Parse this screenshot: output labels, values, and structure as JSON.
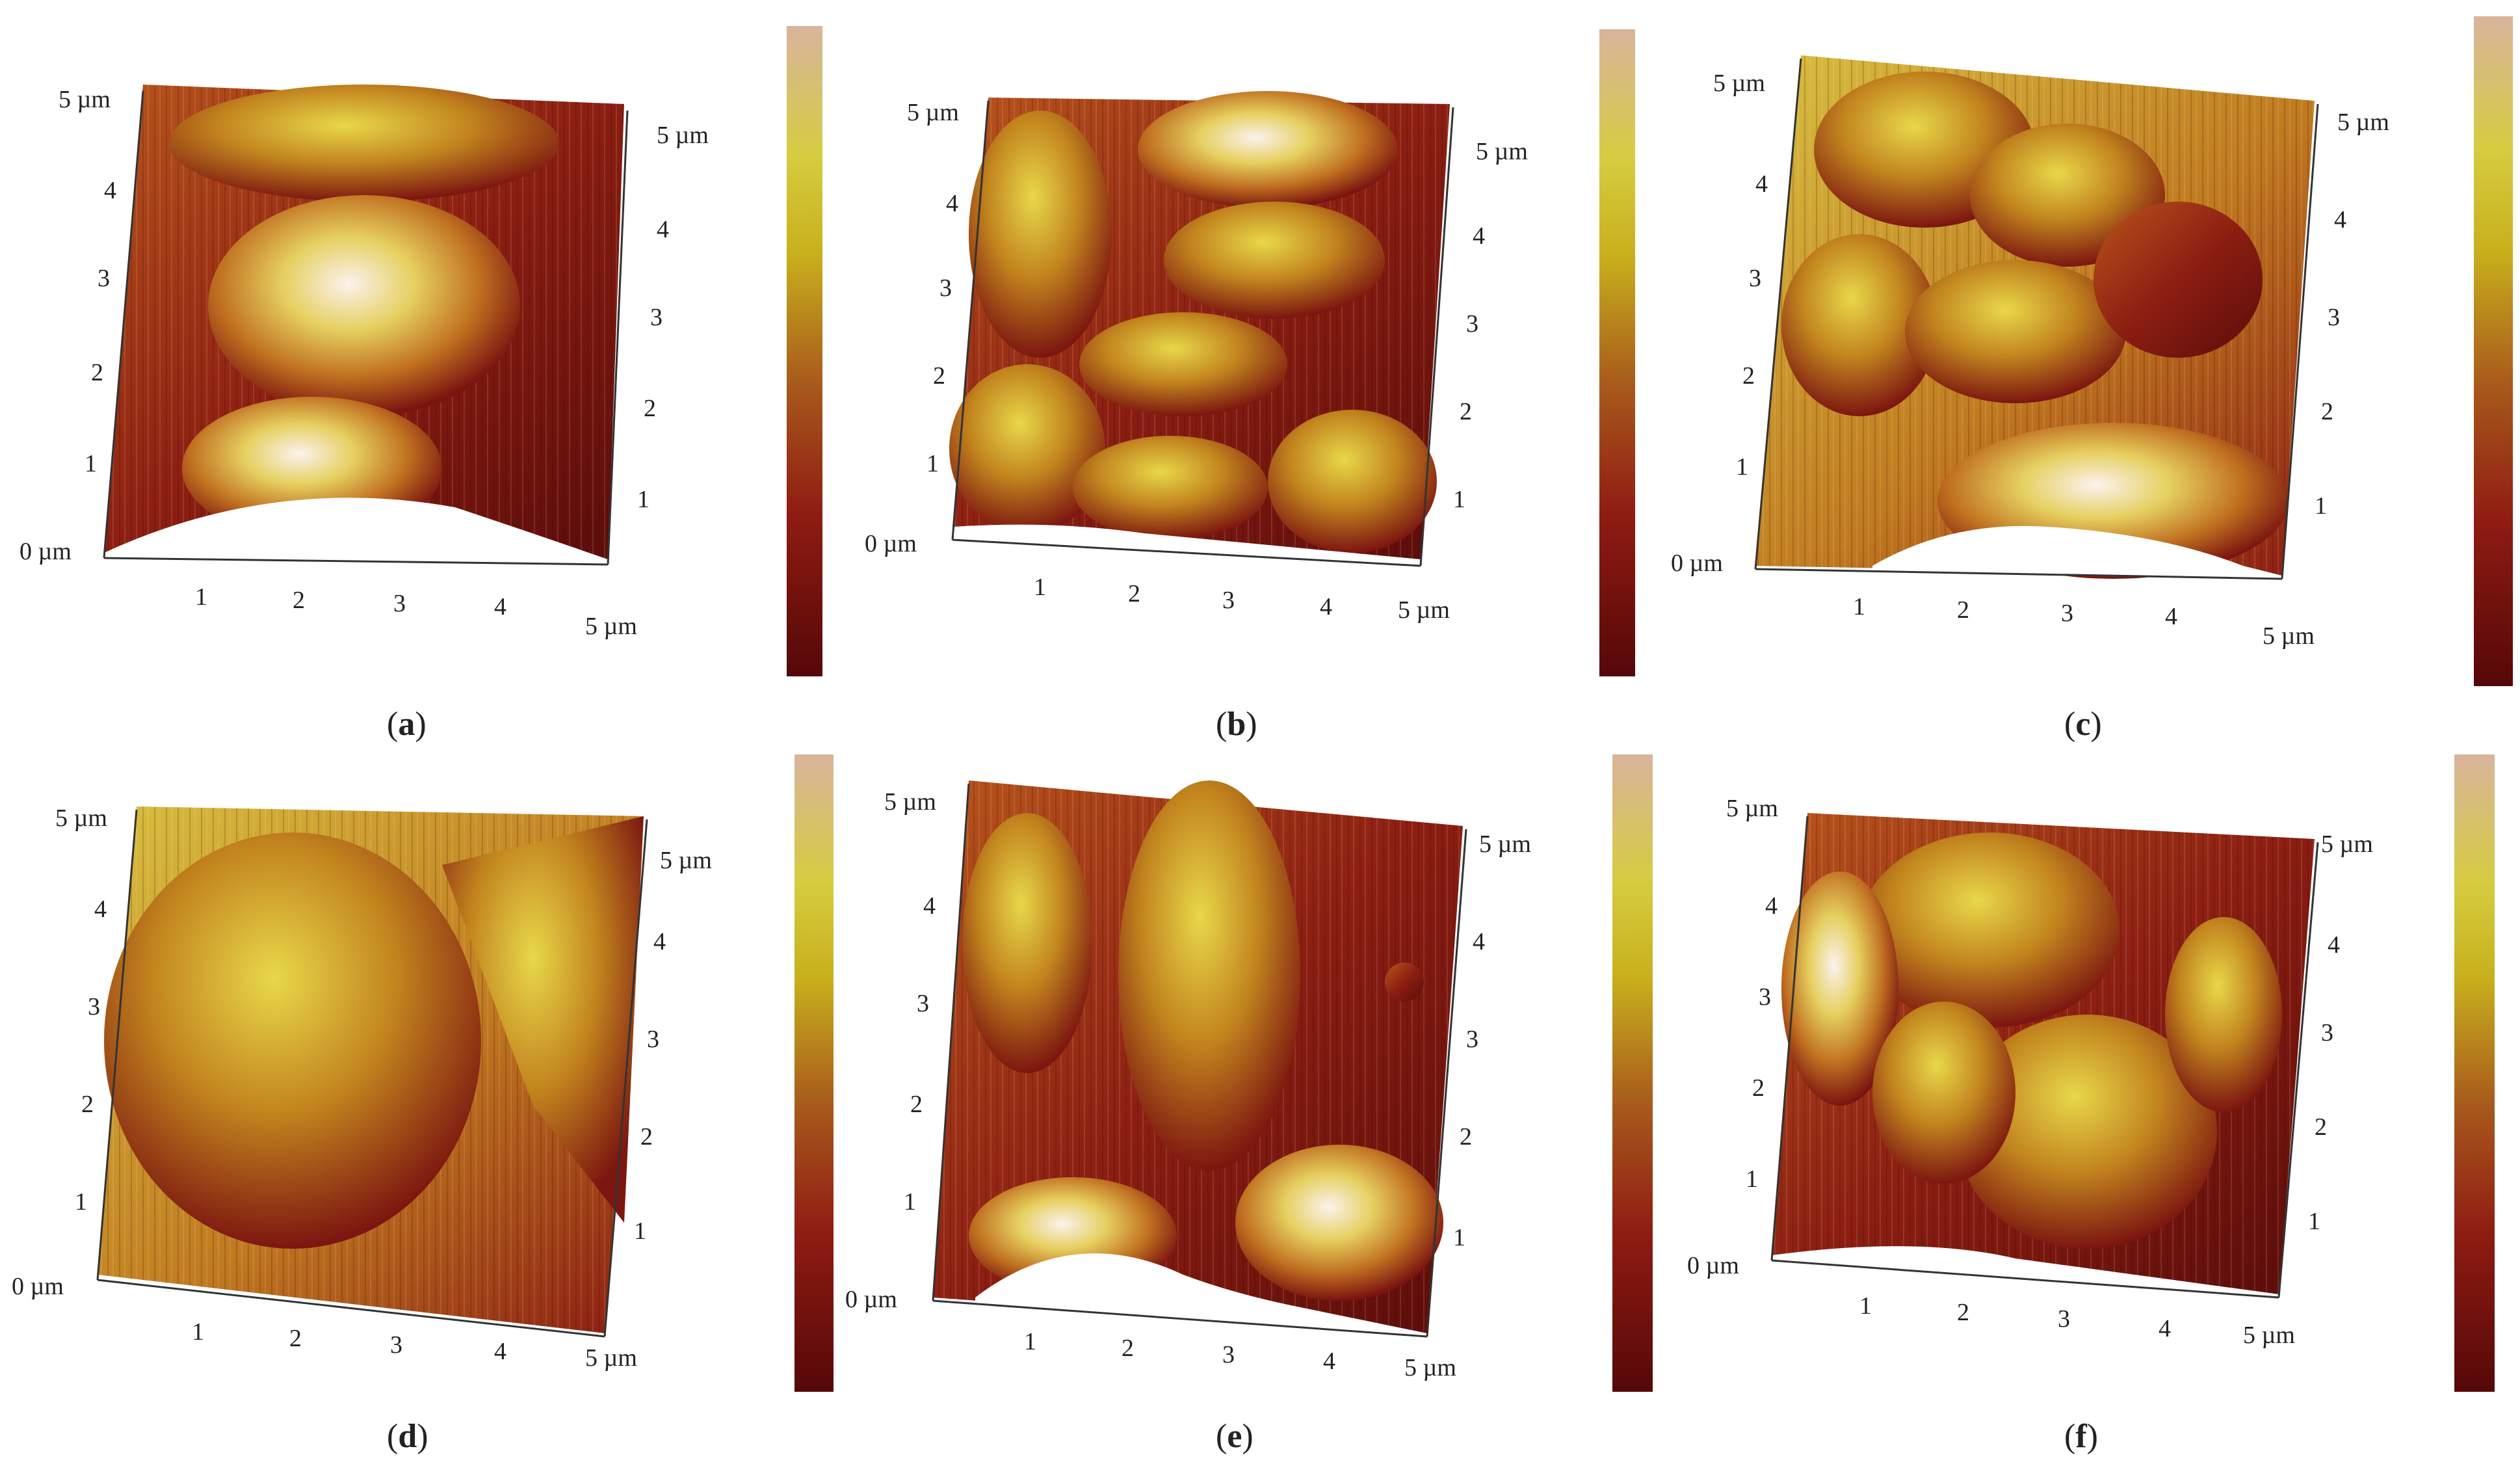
{
  "panels": [
    {
      "id": "a",
      "caption_letter": "a"
    },
    {
      "id": "b",
      "caption_letter": "b"
    },
    {
      "id": "c",
      "caption_letter": "c"
    },
    {
      "id": "d",
      "caption_letter": "d"
    },
    {
      "id": "e",
      "caption_letter": "e"
    },
    {
      "id": "f",
      "caption_letter": "f"
    }
  ],
  "axis": {
    "origin": "0 µm",
    "end": "5 µm",
    "ticks": [
      "1",
      "2",
      "3",
      "4"
    ]
  },
  "colorscale": {
    "stops": [
      "#5a0a08",
      "#8b1a12",
      "#a8401a",
      "#c8a018",
      "#d8d030",
      "#d7b79a"
    ]
  },
  "colors": {
    "low": "#6a0d0d",
    "mid": "#b8421c",
    "high": "#d8c828",
    "peak": "#f4e6e2"
  }
}
